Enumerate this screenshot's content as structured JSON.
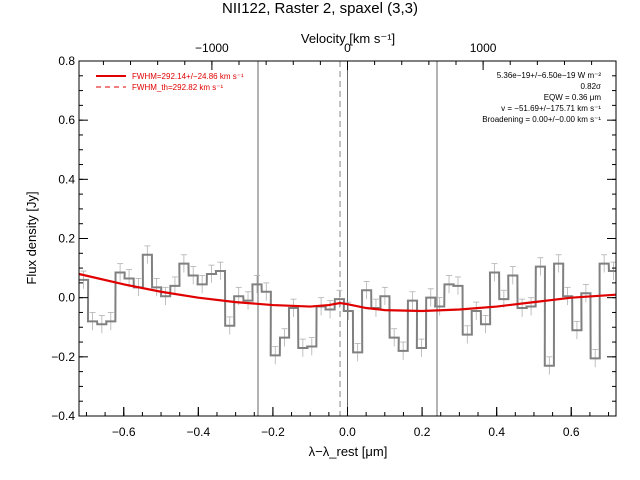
{
  "title": "NII122, Raster 2, spaxel (3,3)",
  "top_axis_label": "Velocity [km s⁻¹]",
  "top_ticks": [
    {
      "value": -1000,
      "label": "−1000"
    },
    {
      "value": 0,
      "label": "0"
    },
    {
      "value": 1000,
      "label": "1000"
    }
  ],
  "legend": [
    {
      "label": "FWHM=292.14+/−24.86 km s⁻¹",
      "style": "solid"
    },
    {
      "label": "FWHM_th=292.82 km s⁻¹",
      "style": "dashed"
    }
  ],
  "annotations": [
    "5.36e−19+/−6.50e−19 W m⁻²",
    "0.82σ",
    "EQW = 0.36 μm",
    "v = −51.69+/−175.71 km s⁻¹",
    "Broadening = 0.00+/−0.00 km s⁻¹"
  ],
  "colors": {
    "model": "#e00000",
    "data": "#808080",
    "axes": "#000000"
  },
  "chart_data": {
    "type": "line",
    "title": "NII122, Raster 2, spaxel (3,3)",
    "xlabel": "λ−λ_rest [μm]",
    "ylabel": "Flux density [Jy]",
    "xlim": [
      -0.72,
      0.72
    ],
    "ylim": [
      -0.4,
      0.8
    ],
    "x_ticks": [
      -0.6,
      -0.4,
      -0.2,
      0.0,
      0.2,
      0.4,
      0.6
    ],
    "x_tick_labels": [
      "−0.6",
      "−0.4",
      "−0.2",
      "0.0",
      "0.2",
      "0.4",
      "0.6"
    ],
    "y_ticks": [
      -0.4,
      -0.2,
      0.0,
      0.2,
      0.4,
      0.6,
      0.8
    ],
    "y_tick_labels": [
      "−0.4",
      "−0.2",
      "0.0",
      "0.2",
      "0.4",
      "0.6",
      "0.8"
    ],
    "vertical_lines": [
      -0.24,
      0.0,
      0.24
    ],
    "dashed_vertical_line": -0.02,
    "series": [
      {
        "style": "histogram",
        "bin_width": 0.0245,
        "x": [
          -0.72,
          -0.696,
          -0.671,
          -0.647,
          -0.622,
          -0.598,
          -0.573,
          -0.549,
          -0.524,
          -0.5,
          -0.475,
          -0.451,
          -0.426,
          -0.402,
          -0.377,
          -0.353,
          -0.328,
          -0.304,
          -0.279,
          -0.255,
          -0.23,
          -0.206,
          -0.181,
          -0.157,
          -0.132,
          -0.108,
          -0.083,
          -0.059,
          -0.034,
          -0.01,
          0.015,
          0.039,
          0.064,
          0.088,
          0.113,
          0.137,
          0.162,
          0.186,
          0.211,
          0.235,
          0.26,
          0.284,
          0.309,
          0.333,
          0.358,
          0.382,
          0.407,
          0.431,
          0.456,
          0.48,
          0.505,
          0.529,
          0.554,
          0.578,
          0.603,
          0.627,
          0.652,
          0.676,
          0.701
        ],
        "y": [
          0.06,
          -0.08,
          -0.09,
          -0.08,
          0.085,
          0.065,
          0.035,
          0.145,
          0.035,
          0.005,
          0.04,
          0.115,
          0.075,
          0.045,
          0.08,
          0.09,
          -0.095,
          0.005,
          -0.01,
          0.045,
          0.02,
          -0.195,
          -0.135,
          -0.035,
          -0.17,
          -0.165,
          -0.03,
          -0.04,
          -0.005,
          -0.045,
          -0.185,
          0.025,
          -0.035,
          0.005,
          -0.135,
          -0.18,
          -0.01,
          -0.17,
          0.0,
          -0.03,
          0.045,
          0.04,
          -0.125,
          -0.045,
          -0.09,
          0.085,
          -0.005,
          0.075,
          -0.035,
          -0.03,
          0.105,
          -0.23,
          0.115,
          0.005,
          -0.11,
          0.015,
          -0.205,
          0.115,
          0.09
        ]
      },
      {
        "name": "FWHM=292.14+/−24.86 km s⁻¹",
        "style": "solid",
        "x": [
          -0.72,
          -0.6,
          -0.5,
          -0.4,
          -0.3,
          -0.2,
          -0.1,
          -0.05,
          -0.02,
          0.0,
          0.05,
          0.1,
          0.2,
          0.3,
          0.4,
          0.5,
          0.6,
          0.72
        ],
        "y": [
          0.08,
          0.045,
          0.02,
          0.0,
          -0.015,
          -0.025,
          -0.03,
          -0.025,
          -0.018,
          -0.022,
          -0.035,
          -0.042,
          -0.045,
          -0.04,
          -0.03,
          -0.015,
          0.0,
          0.01
        ]
      }
    ]
  }
}
